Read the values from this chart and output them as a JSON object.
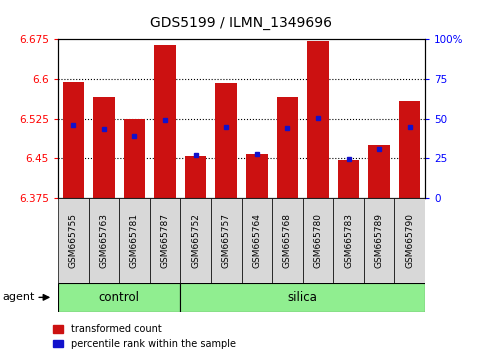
{
  "title": "GDS5199 / ILMN_1349696",
  "samples": [
    "GSM665755",
    "GSM665763",
    "GSM665781",
    "GSM665787",
    "GSM665752",
    "GSM665757",
    "GSM665764",
    "GSM665768",
    "GSM665780",
    "GSM665783",
    "GSM665789",
    "GSM665790"
  ],
  "groups": [
    "control",
    "control",
    "control",
    "control",
    "silica",
    "silica",
    "silica",
    "silica",
    "silica",
    "silica",
    "silica",
    "silica"
  ],
  "red_values": [
    6.594,
    6.565,
    6.525,
    6.663,
    6.455,
    6.592,
    6.458,
    6.565,
    6.672,
    6.447,
    6.475,
    6.558
  ],
  "blue_values": [
    6.513,
    6.505,
    6.492,
    6.523,
    6.456,
    6.51,
    6.458,
    6.508,
    6.527,
    6.449,
    6.467,
    6.51
  ],
  "ymin": 6.375,
  "ymax": 6.675,
  "y_ticks_left": [
    6.375,
    6.45,
    6.525,
    6.6,
    6.675
  ],
  "y_ticks_right": [
    0,
    25,
    50,
    75,
    100
  ],
  "right_tick_labels": [
    "0",
    "25",
    "50",
    "75",
    "100%"
  ],
  "bar_width": 0.7,
  "bar_color": "#cc1111",
  "blue_color": "#1111cc",
  "control_color": "#90ee90",
  "silica_color": "#90ee90",
  "n_control": 4,
  "n_silica": 8
}
